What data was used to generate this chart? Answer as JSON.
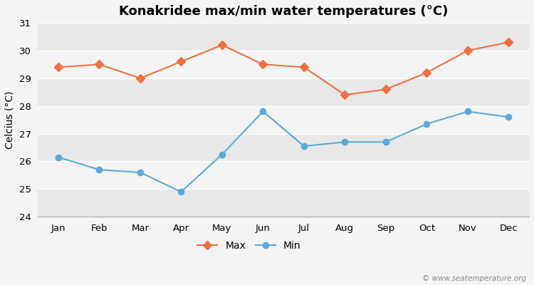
{
  "title": "Konakridee max/min water temperatures (°C)",
  "ylabel": "Celcius (°C)",
  "months": [
    "Jan",
    "Feb",
    "Mar",
    "Apr",
    "May",
    "Jun",
    "Jul",
    "Aug",
    "Sep",
    "Oct",
    "Nov",
    "Dec"
  ],
  "max_values": [
    29.4,
    29.5,
    29.0,
    29.6,
    30.2,
    29.5,
    29.4,
    28.4,
    28.6,
    29.2,
    30.0,
    30.3
  ],
  "min_values": [
    26.15,
    25.7,
    25.6,
    24.9,
    26.25,
    27.8,
    26.55,
    26.7,
    26.7,
    27.35,
    27.8,
    27.6
  ],
  "max_color": "#f07040",
  "min_color": "#5aabdb",
  "ylim": [
    24,
    31
  ],
  "yticks": [
    24,
    25,
    26,
    27,
    28,
    29,
    30,
    31
  ],
  "band_colors": [
    "#e8e8e8",
    "#f4f4f4"
  ],
  "title_fontsize": 13,
  "label_fontsize": 10,
  "tick_fontsize": 9.5,
  "watermark": "© www.seatemperature.org",
  "legend_labels": [
    "Max",
    "Min"
  ]
}
